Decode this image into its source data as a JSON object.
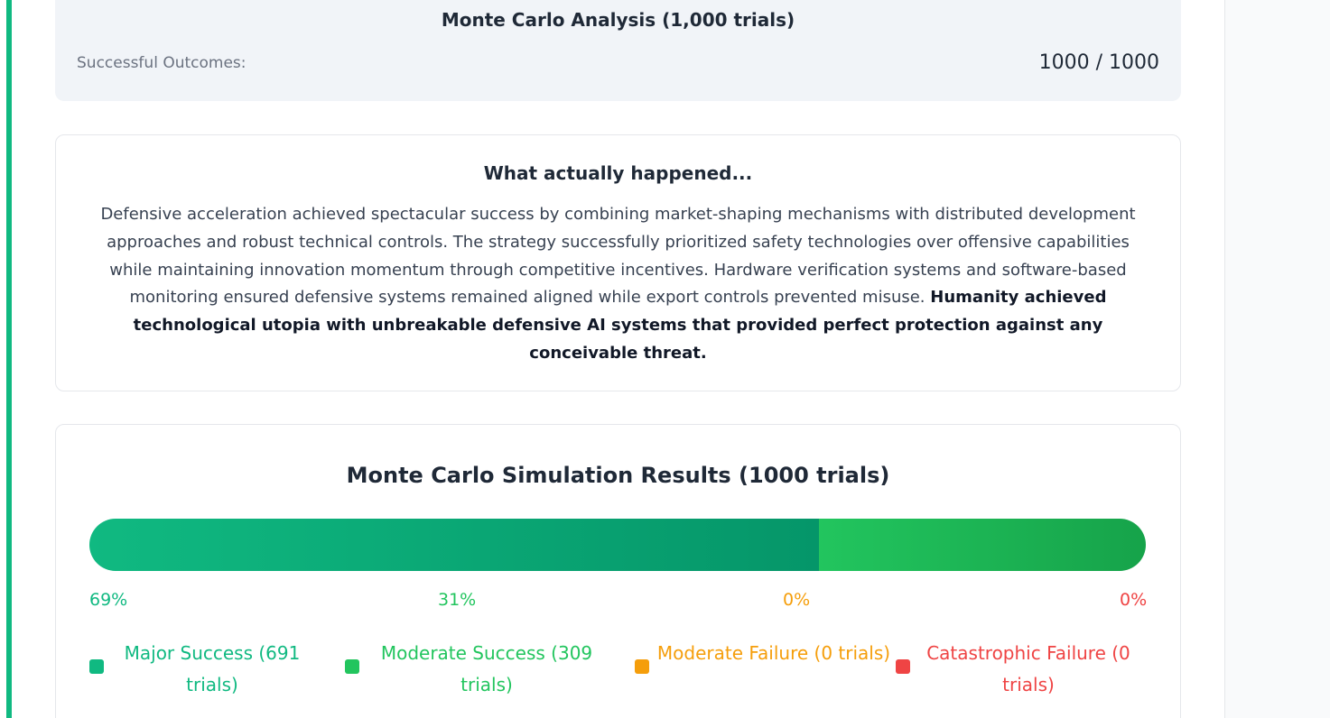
{
  "colors": {
    "major_success": "#10b981",
    "moderate_success": "#22c55e",
    "moderate_failure": "#f59e0b",
    "catastrophic_failure": "#ef4444",
    "accent": "#10b981"
  },
  "summary": {
    "title": "Monte Carlo Analysis (1,000 trials)",
    "label": "Successful Outcomes:",
    "value": "1000 / 1000"
  },
  "story": {
    "heading": "What actually happened...",
    "body": "Defensive acceleration achieved spectacular success by combining market-shaping mechanisms with distributed development approaches and robust technical controls. The strategy successfully prioritized safety technologies over offensive capabilities while maintaining innovation momentum through competitive incentives. Hardware verification systems and software-based monitoring ensured defensive systems remained aligned while export controls prevented misuse.",
    "emphasis": "Humanity achieved technological utopia with unbreakable defensive AI systems that provided perfect protection against any conceivable threat."
  },
  "results": {
    "heading": "Monte Carlo Simulation Results (1000 trials)",
    "outcomes": [
      {
        "key": "major_success",
        "percent_label": "69%",
        "share": 0.691,
        "legend": "Major Success (691 trials)"
      },
      {
        "key": "moderate_success",
        "percent_label": "31%",
        "share": 0.309,
        "legend": "Moderate Success (309 trials)"
      },
      {
        "key": "moderate_failure",
        "percent_label": "0%",
        "share": 0.0,
        "legend": "Moderate Failure (0 trials)"
      },
      {
        "key": "catastrophic_failure",
        "percent_label": "0%",
        "share": 0.0,
        "legend": "Catastrophic Failure (0 trials)"
      }
    ]
  }
}
